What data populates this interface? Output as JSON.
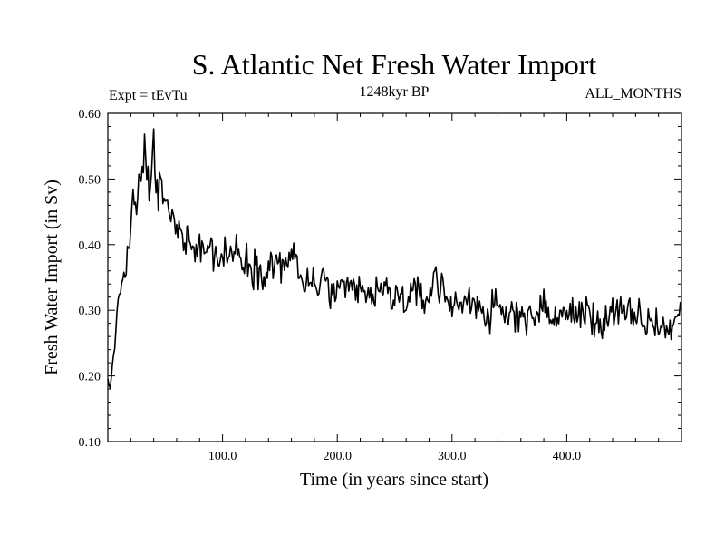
{
  "chart_data": {
    "type": "line",
    "title": "S. Atlantic Net Fresh Water Import",
    "subtitle_left": "Expt = tEvTu",
    "subtitle_center": "1248kyr BP",
    "subtitle_right": "ALL_MONTHS",
    "xlabel": "Time (in years since start)",
    "ylabel": "Fresh Water Import (in Sv)",
    "xlim": [
      0,
      500
    ],
    "ylim": [
      0.1,
      0.6
    ],
    "x_ticks": [
      100,
      200,
      300,
      400
    ],
    "x_tick_labels": [
      "100.0",
      "200.0",
      "300.0",
      "400.0"
    ],
    "y_ticks": [
      0.1,
      0.2,
      0.3,
      0.4,
      0.5,
      0.6
    ],
    "y_tick_labels": [
      "0.10",
      "0.20",
      "0.30",
      "0.40",
      "0.50",
      "0.60"
    ],
    "grid": false,
    "line_color": "#000000",
    "series": [
      {
        "name": "net fresh water import",
        "x": [
          0,
          2,
          4,
          6,
          8,
          10,
          12,
          14,
          16,
          18,
          20,
          22,
          24,
          26,
          28,
          30,
          32,
          34,
          36,
          38,
          40,
          42,
          44,
          46,
          48,
          50,
          55,
          60,
          65,
          70,
          75,
          80,
          85,
          90,
          95,
          100,
          110,
          120,
          130,
          140,
          150,
          160,
          165,
          170,
          175,
          180,
          190,
          200,
          210,
          220,
          230,
          240,
          250,
          260,
          270,
          280,
          285,
          290,
          300,
          310,
          320,
          330,
          340,
          350,
          360,
          370,
          380,
          390,
          400,
          410,
          420,
          430,
          440,
          450,
          460,
          470,
          480,
          490,
          500
        ],
        "values": [
          0.19,
          0.18,
          0.22,
          0.25,
          0.29,
          0.32,
          0.34,
          0.36,
          0.36,
          0.39,
          0.43,
          0.46,
          0.46,
          0.47,
          0.49,
          0.5,
          0.55,
          0.51,
          0.48,
          0.52,
          0.55,
          0.49,
          0.47,
          0.5,
          0.48,
          0.46,
          0.44,
          0.43,
          0.41,
          0.42,
          0.4,
          0.4,
          0.39,
          0.4,
          0.38,
          0.38,
          0.39,
          0.38,
          0.36,
          0.37,
          0.37,
          0.38,
          0.37,
          0.33,
          0.35,
          0.34,
          0.34,
          0.32,
          0.33,
          0.33,
          0.32,
          0.33,
          0.32,
          0.32,
          0.32,
          0.32,
          0.36,
          0.33,
          0.31,
          0.31,
          0.32,
          0.29,
          0.3,
          0.29,
          0.3,
          0.29,
          0.3,
          0.29,
          0.29,
          0.3,
          0.29,
          0.28,
          0.3,
          0.29,
          0.29,
          0.28,
          0.28,
          0.27,
          0.3
        ]
      }
    ]
  }
}
